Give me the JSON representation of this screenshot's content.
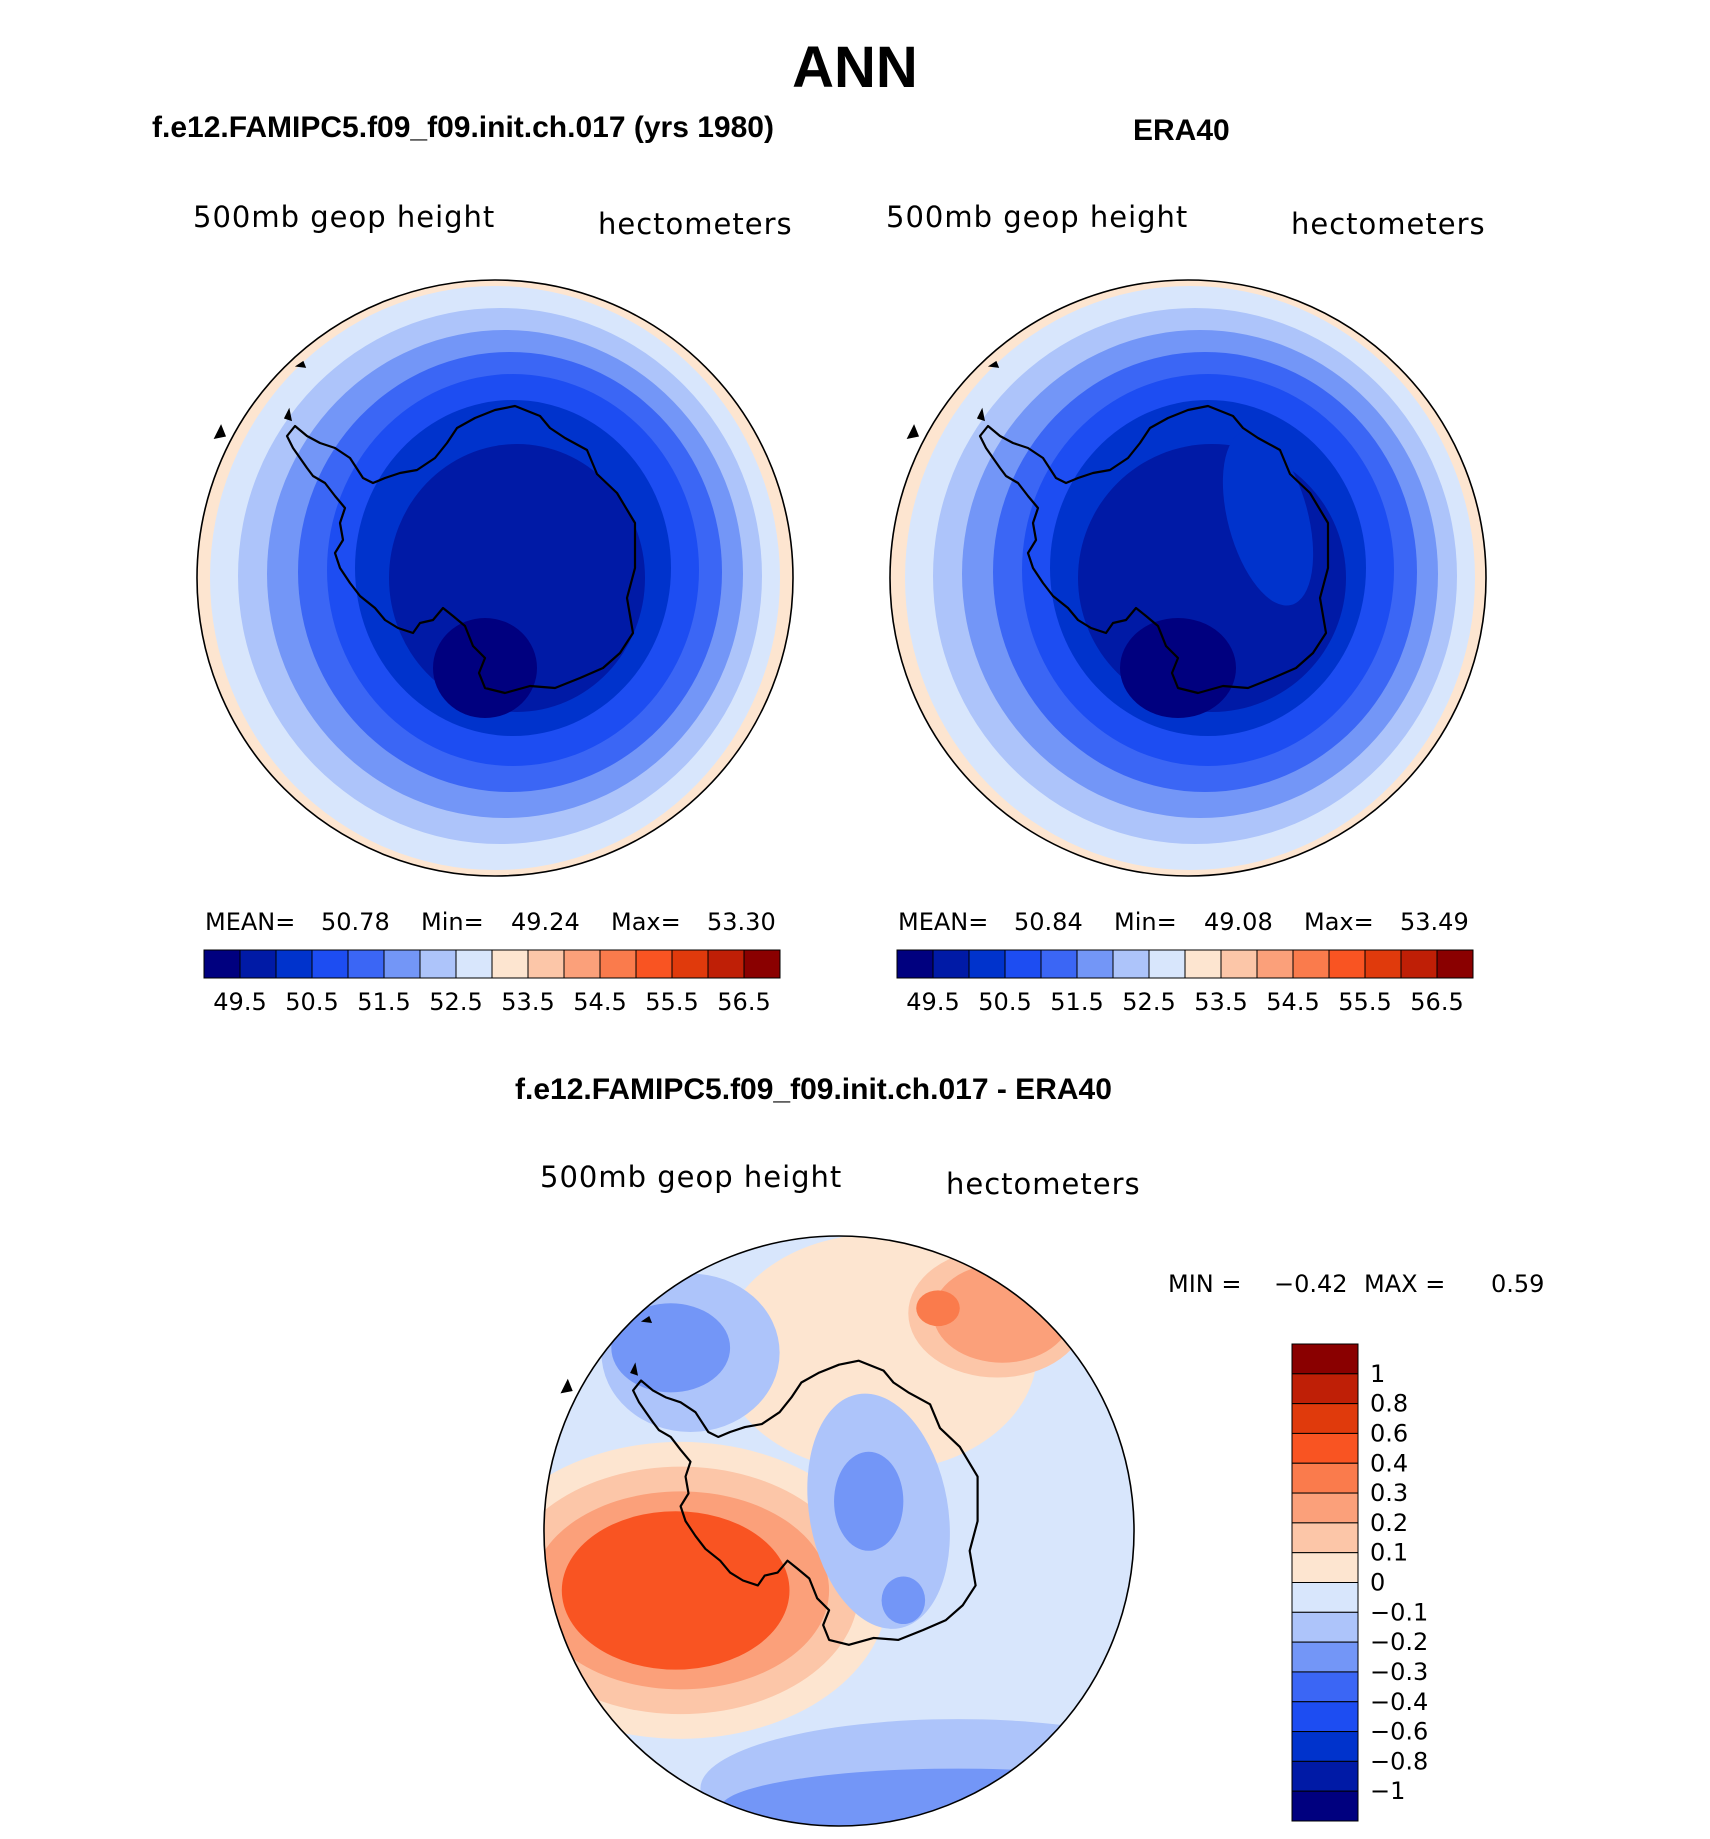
{
  "figure_title": "ANN",
  "colors": {
    "blue_scale": [
      "#00007f",
      "#001aa6",
      "#0033cc",
      "#1d4df2",
      "#3b66f5",
      "#7396f7",
      "#adc4fa",
      "#d8e6fc"
    ],
    "red_scale": [
      "#fde5d0",
      "#fcc6a8",
      "#fba07a",
      "#fa7b4c",
      "#f95422",
      "#e03a0c",
      "#bf1f06",
      "#8a0000"
    ],
    "diff_colors": [
      "#8a0000",
      "#bf1f06",
      "#e03a0c",
      "#f95422",
      "#fa7b4c",
      "#fba07a",
      "#fcc6a8",
      "#fde5d0",
      "#d8e6fc",
      "#adc4fa",
      "#7396f7",
      "#3b66f5",
      "#1d4df2",
      "#0033cc",
      "#001aa6",
      "#00007f"
    ]
  },
  "chart_data": [
    {
      "type": "heatmap",
      "title": "f.e12.FAMIPC5.f09_f09.init.ch.017 (yrs 1980)",
      "variable": "500mb geop height",
      "units": "hectometers",
      "stats": {
        "mean_label": "MEAN=",
        "mean": "50.78",
        "min_label": "Min=",
        "min": "49.24",
        "max_label": "Max=",
        "max": "53.30"
      },
      "levels": [
        "49.5",
        "50.5",
        "51.5",
        "52.5",
        "53.5",
        "54.5",
        "55.5",
        "56.5"
      ],
      "contours": [
        53.0,
        52.5,
        52.0,
        51.5,
        51.0,
        50.5,
        50.0,
        49.5
      ],
      "projection": "south polar stereographic"
    },
    {
      "type": "heatmap",
      "title": "ERA40",
      "variable": "500mb geop height",
      "units": "hectometers",
      "stats": {
        "mean_label": "MEAN=",
        "mean": "50.84",
        "min_label": "Min=",
        "min": "49.08",
        "max_label": "Max=",
        "max": "53.49"
      },
      "levels": [
        "49.5",
        "50.5",
        "51.5",
        "52.5",
        "53.5",
        "54.5",
        "55.5",
        "56.5"
      ],
      "contours": [
        53.0,
        52.5,
        52.0,
        51.5,
        51.0,
        50.5,
        50.0,
        49.5
      ],
      "projection": "south polar stereographic"
    },
    {
      "type": "heatmap",
      "title": "f.e12.FAMIPC5.f09_f09.init.ch.017 - ERA40",
      "variable": "500mb geop height",
      "units": "hectometers",
      "stats": {
        "min_label": "MIN =",
        "min": "−0.42",
        "max_label": "MAX =",
        "max": "0.59"
      },
      "levels": [
        "1",
        "0.8",
        "0.6",
        "0.4",
        "0.3",
        "0.2",
        "0.1",
        "0",
        "−0.1",
        "−0.2",
        "−0.3",
        "−0.4",
        "−0.6",
        "−0.8",
        "−1"
      ],
      "projection": "south polar stereographic"
    }
  ]
}
